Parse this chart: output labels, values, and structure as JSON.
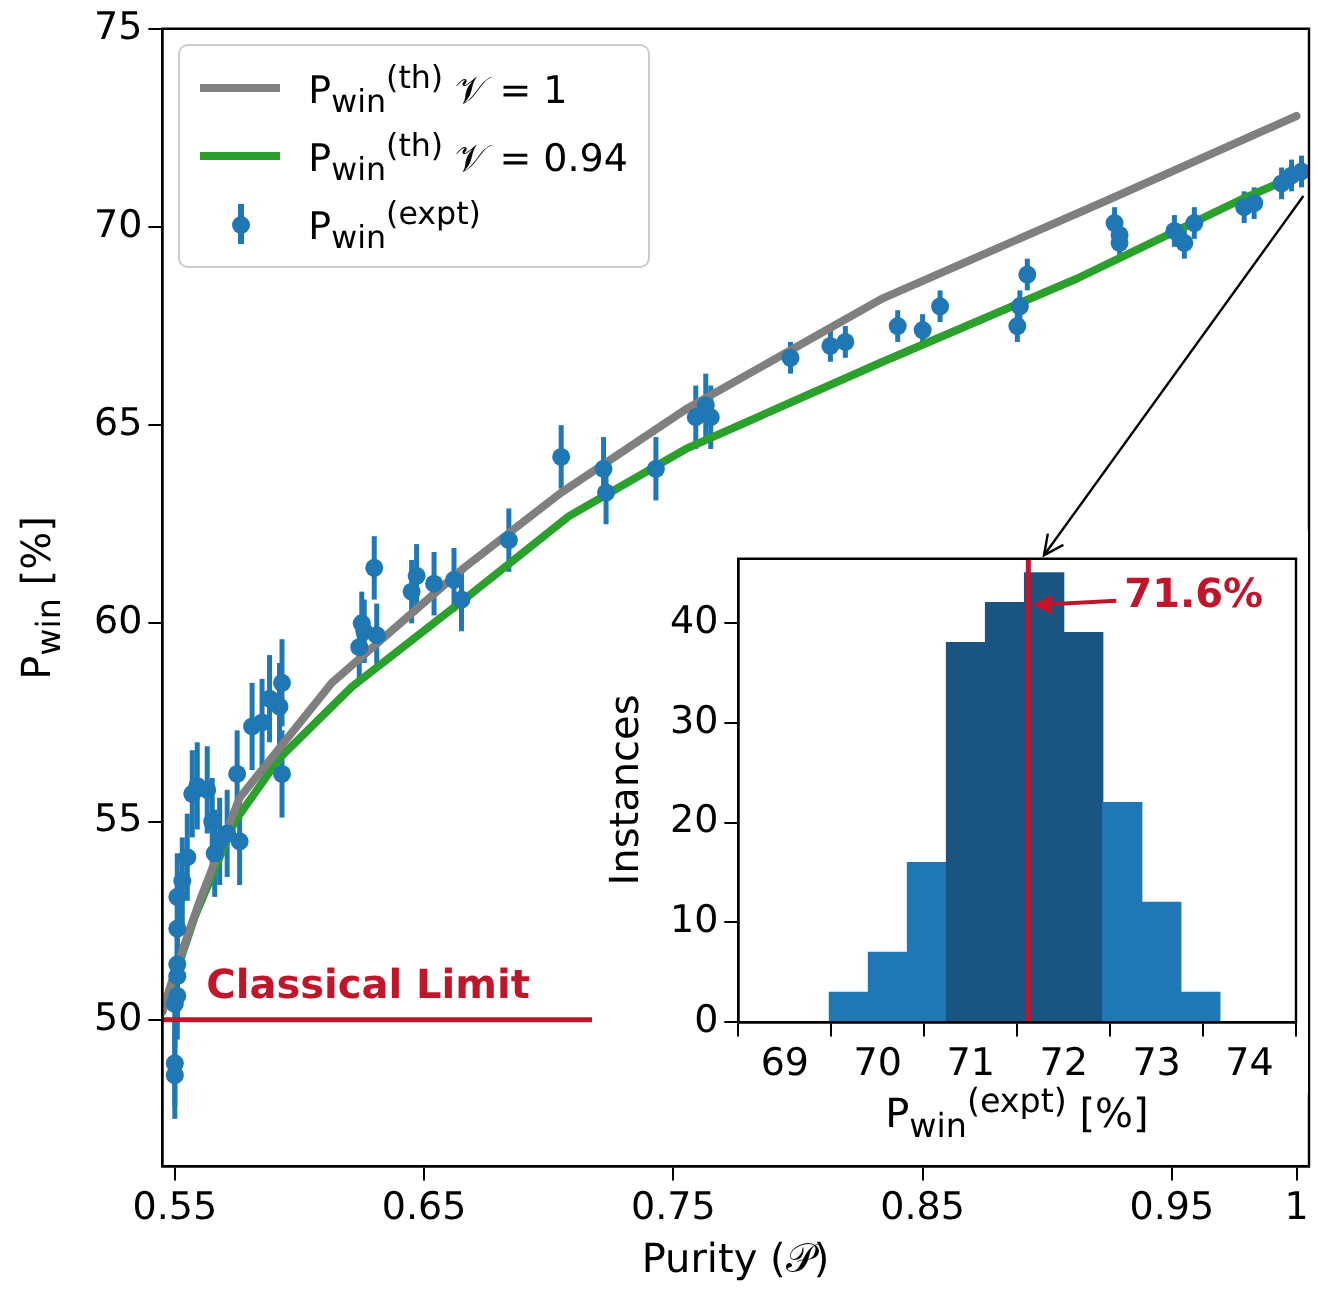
{
  "chart_data": [
    {
      "type": "scatter",
      "xlabel": "Purity (𝒫)",
      "ylabel": "P$_{win}$ [%]",
      "xlim": [
        0.545,
        1.005
      ],
      "ylim": [
        46.3,
        75
      ],
      "xticks": [
        0.55,
        0.65,
        0.75,
        0.85,
        0.95,
        1
      ],
      "yticks": [
        50,
        55,
        60,
        65,
        70,
        75
      ],
      "legend": "top left",
      "series": [
        {
          "type": "line",
          "name": "P$_{win}$$^{(th)}$ 𝒱 = 1",
          "color": "#7f7f7f",
          "x": [
            0.545,
            0.55,
            0.56,
            0.576,
            0.613,
            0.666,
            0.705,
            0.755,
            0.834,
            0.925,
            1.0
          ],
          "values": [
            50.2,
            51.2,
            53.0,
            55.6,
            58.5,
            61.4,
            63.3,
            65.4,
            68.2,
            70.7,
            72.8
          ]
        },
        {
          "type": "line",
          "name": "P$_{win}$$^{(th)}$ 𝒱 = 0.94",
          "color": "#2ca02c",
          "x": [
            0.545,
            0.55,
            0.558,
            0.574,
            0.592,
            0.621,
            0.666,
            0.708,
            0.755,
            0.834,
            0.912,
            0.978,
            1.0
          ],
          "values": [
            50.2,
            51.1,
            52.6,
            55.0,
            56.6,
            58.4,
            60.6,
            62.7,
            64.4,
            66.6,
            68.7,
            70.7,
            71.3
          ]
        },
        {
          "type": "scatter",
          "name": "P$_{win}$$^{(expt)}$",
          "color": "#1f77b4",
          "marker": "circle",
          "x": [
            0.55,
            0.55,
            0.55,
            0.551,
            0.551,
            0.551,
            0.551,
            0.551,
            0.553,
            0.555,
            0.557,
            0.559,
            0.563,
            0.565,
            0.566,
            0.568,
            0.571,
            0.575,
            0.576,
            0.581,
            0.585,
            0.588,
            0.592,
            0.593,
            0.593,
            0.624,
            0.625,
            0.626,
            0.63,
            0.631,
            0.645,
            0.647,
            0.654,
            0.662,
            0.665,
            0.684,
            0.705,
            0.722,
            0.723,
            0.743,
            0.759,
            0.763,
            0.765,
            0.797,
            0.813,
            0.819,
            0.84,
            0.85,
            0.857,
            0.888,
            0.889,
            0.892,
            0.927,
            0.929,
            0.929,
            0.951,
            0.955,
            0.959,
            0.979,
            0.983,
            0.994,
            0.998,
            1.002
          ],
          "values": [
            48.6,
            48.9,
            50.4,
            50.6,
            51.1,
            51.4,
            52.3,
            53.1,
            53.5,
            54.1,
            55.7,
            55.9,
            55.8,
            55.0,
            54.2,
            54.5,
            54.7,
            56.2,
            54.5,
            57.4,
            57.5,
            58.1,
            57.9,
            58.5,
            56.2,
            59.4,
            60.0,
            59.8,
            61.4,
            59.7,
            60.8,
            61.2,
            61.0,
            61.1,
            60.6,
            62.1,
            64.2,
            63.9,
            63.3,
            63.9,
            65.2,
            65.5,
            65.2,
            66.7,
            67.0,
            67.1,
            67.5,
            67.4,
            68.0,
            67.5,
            68.0,
            68.8,
            70.1,
            69.8,
            69.6,
            69.9,
            69.6,
            70.1,
            70.5,
            70.6,
            71.1,
            71.3,
            71.4
          ],
          "errors": [
            1.1,
            1.1,
            1.1,
            1.1,
            1.1,
            1.1,
            1.1,
            1.1,
            1.1,
            1.1,
            1.1,
            1.1,
            1.1,
            1.1,
            1.1,
            1.1,
            1.1,
            1.1,
            1.1,
            1.1,
            1.1,
            1.1,
            1.1,
            1.1,
            1.1,
            0.8,
            0.8,
            0.8,
            0.8,
            0.8,
            0.8,
            0.8,
            0.8,
            0.8,
            0.8,
            0.8,
            0.8,
            0.8,
            0.8,
            0.8,
            0.8,
            0.8,
            0.8,
            0.4,
            0.4,
            0.4,
            0.4,
            0.4,
            0.4,
            0.4,
            0.4,
            0.4,
            0.4,
            0.4,
            0.4,
            0.4,
            0.4,
            0.4,
            0.4,
            0.4,
            0.4,
            0.4,
            0.4
          ]
        }
      ],
      "ref_lines": [
        {
          "axis": "y",
          "value": 50,
          "label": "Classical Limit",
          "color": "#c0162c"
        }
      ]
    },
    {
      "type": "histogram",
      "xlabel": "P$_{win}$$^{(expt)}$ [%]",
      "ylabel": "Instances",
      "bins": [
        69.48,
        69.9,
        70.32,
        70.74,
        71.16,
        71.58,
        72.0,
        72.42,
        72.84,
        73.26,
        73.68
      ],
      "values": [
        3,
        7,
        16,
        38,
        42,
        45,
        39,
        22,
        12,
        3
      ],
      "colors": [
        "#1f77b4",
        "#1f77b4",
        "#1f77b4",
        "#1a5582",
        "#1a5582",
        "#1a5582",
        "#1a5582",
        "#1f77b4",
        "#1f77b4",
        "#1f77b4"
      ],
      "xlim": [
        69,
        74
      ],
      "ylim": [
        0,
        46.4
      ],
      "xticks": [
        69,
        70,
        71,
        72,
        73,
        74
      ],
      "yticks": [
        0,
        10,
        20,
        30,
        40
      ],
      "ref_lines": [
        {
          "axis": "x",
          "value": 71.62,
          "color": "#c0162c"
        }
      ],
      "annotations": [
        {
          "text": "71.6%",
          "x": 71.62,
          "y": 42
        }
      ]
    }
  ]
}
